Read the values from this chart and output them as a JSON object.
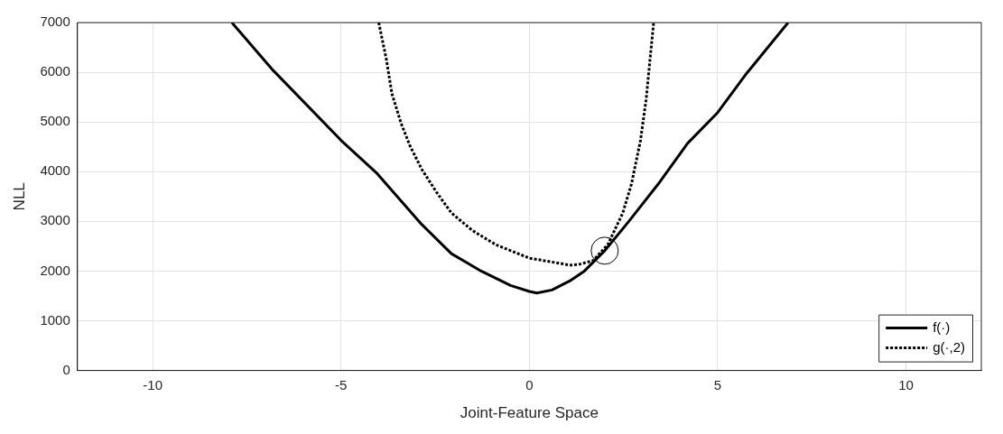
{
  "chart_data": {
    "type": "line",
    "xlabel": "Joint-Feature Space",
    "ylabel": "NLL",
    "xlim": [
      -12,
      12
    ],
    "xticks": [
      -10,
      -5,
      0,
      5,
      10
    ],
    "ylim": [
      0,
      7000
    ],
    "yticks": [
      0,
      1000,
      2000,
      3000,
      4000,
      5000,
      6000,
      7000
    ],
    "grid": true,
    "legend": "bottom right",
    "series": [
      {
        "name": "f(·)",
        "color": "#000000",
        "line_style": "solid",
        "marker": "none",
        "x": [
          -7.9,
          -6.8,
          -5.0,
          -4.04,
          -2.86,
          -2.07,
          -1.28,
          -0.5,
          0,
          0.2,
          0.6,
          1.07,
          1.46,
          2.0,
          2.63,
          3.42,
          4.2,
          5.0,
          5.77,
          6.87
        ],
        "values": [
          7000,
          6035,
          4630,
          3960,
          2940,
          2350,
          2000,
          1710,
          1590,
          1560,
          1620,
          1800,
          2000,
          2410,
          2990,
          3750,
          4570,
          5190,
          5980,
          7000
        ]
      },
      {
        "name": "g(·,2)",
        "color": "#000000",
        "line_style": "dotted",
        "marker": "none",
        "x": [
          -4.0,
          -3.8,
          -3.65,
          -3.41,
          -3.17,
          -2.86,
          -2.46,
          -2.07,
          -1.52,
          -0.89,
          0,
          1.08,
          1.3,
          1.69,
          2.08,
          2.48,
          2.71,
          2.95,
          3.1,
          3.22,
          3.3
        ],
        "values": [
          7000,
          6270,
          5570,
          4980,
          4520,
          4050,
          3580,
          3170,
          2820,
          2530,
          2260,
          2120,
          2130,
          2210,
          2530,
          3170,
          3750,
          4630,
          5450,
          6390,
          7000
        ]
      },
      {
        "type": "scatter",
        "color": "#000000",
        "marker": "circle",
        "x": [
          2.0
        ],
        "values": [
          2410
        ]
      }
    ]
  }
}
